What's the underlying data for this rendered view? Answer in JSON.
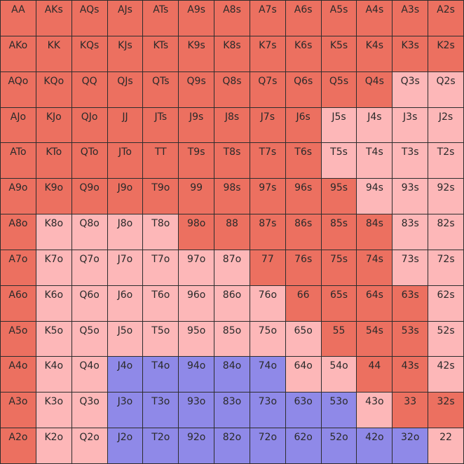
{
  "colors": {
    "raise": "#ec7060",
    "fold": "#fdb7b8",
    "call": "#8f89e8"
  },
  "ranks": [
    "A",
    "K",
    "Q",
    "J",
    "T",
    "9",
    "8",
    "7",
    "6",
    "5",
    "4",
    "3",
    "2"
  ],
  "grid": [
    [
      "R",
      "R",
      "R",
      "R",
      "R",
      "R",
      "R",
      "R",
      "R",
      "R",
      "R",
      "R",
      "R"
    ],
    [
      "R",
      "R",
      "R",
      "R",
      "R",
      "R",
      "R",
      "R",
      "R",
      "R",
      "R",
      "R",
      "R"
    ],
    [
      "R",
      "R",
      "R",
      "R",
      "R",
      "R",
      "R",
      "R",
      "R",
      "R",
      "R",
      "F",
      "F"
    ],
    [
      "R",
      "R",
      "R",
      "R",
      "R",
      "R",
      "R",
      "R",
      "R",
      "F",
      "F",
      "F",
      "F"
    ],
    [
      "R",
      "R",
      "R",
      "R",
      "R",
      "R",
      "R",
      "R",
      "R",
      "F",
      "F",
      "F",
      "F"
    ],
    [
      "R",
      "R",
      "R",
      "R",
      "R",
      "R",
      "R",
      "R",
      "R",
      "R",
      "F",
      "F",
      "F"
    ],
    [
      "R",
      "F",
      "F",
      "F",
      "F",
      "R",
      "R",
      "R",
      "R",
      "R",
      "R",
      "F",
      "F"
    ],
    [
      "R",
      "F",
      "F",
      "F",
      "F",
      "F",
      "F",
      "R",
      "R",
      "R",
      "R",
      "F",
      "F"
    ],
    [
      "R",
      "F",
      "F",
      "F",
      "F",
      "F",
      "F",
      "F",
      "R",
      "R",
      "R",
      "R",
      "F"
    ],
    [
      "R",
      "F",
      "F",
      "F",
      "F",
      "F",
      "F",
      "F",
      "F",
      "R",
      "R",
      "R",
      "F"
    ],
    [
      "R",
      "F",
      "F",
      "C",
      "C",
      "C",
      "C",
      "C",
      "F",
      "F",
      "R",
      "R",
      "F"
    ],
    [
      "R",
      "F",
      "F",
      "C",
      "C",
      "C",
      "C",
      "C",
      "C",
      "C",
      "F",
      "R",
      "R"
    ],
    [
      "R",
      "F",
      "F",
      "C",
      "C",
      "C",
      "C",
      "C",
      "C",
      "C",
      "C",
      "C",
      "F"
    ]
  ],
  "cells": [
    [
      "AA",
      "AKs",
      "AQs",
      "AJs",
      "ATs",
      "A9s",
      "A8s",
      "A7s",
      "A6s",
      "A5s",
      "A4s",
      "A3s",
      "A2s"
    ],
    [
      "AKo",
      "KK",
      "KQs",
      "KJs",
      "KTs",
      "K9s",
      "K8s",
      "K7s",
      "K6s",
      "K5s",
      "K4s",
      "K3s",
      "K2s"
    ],
    [
      "AQo",
      "KQo",
      "QQ",
      "QJs",
      "QTs",
      "Q9s",
      "Q8s",
      "Q7s",
      "Q6s",
      "Q5s",
      "Q4s",
      "Q3s",
      "Q2s"
    ],
    [
      "AJo",
      "KJo",
      "QJo",
      "JJ",
      "JTs",
      "J9s",
      "J8s",
      "J7s",
      "J6s",
      "J5s",
      "J4s",
      "J3s",
      "J2s"
    ],
    [
      "ATo",
      "KTo",
      "QTo",
      "JTo",
      "TT",
      "T9s",
      "T8s",
      "T7s",
      "T6s",
      "T5s",
      "T4s",
      "T3s",
      "T2s"
    ],
    [
      "A9o",
      "K9o",
      "Q9o",
      "J9o",
      "T9o",
      "99",
      "98s",
      "97s",
      "96s",
      "95s",
      "94s",
      "93s",
      "92s"
    ],
    [
      "A8o",
      "K8o",
      "Q8o",
      "J8o",
      "T8o",
      "98o",
      "88",
      "87s",
      "86s",
      "85s",
      "84s",
      "83s",
      "82s"
    ],
    [
      "A7o",
      "K7o",
      "Q7o",
      "J7o",
      "T7o",
      "97o",
      "87o",
      "77",
      "76s",
      "75s",
      "74s",
      "73s",
      "72s"
    ],
    [
      "A6o",
      "K6o",
      "Q6o",
      "J6o",
      "T6o",
      "96o",
      "86o",
      "76o",
      "66",
      "65s",
      "64s",
      "63s",
      "62s"
    ],
    [
      "A5o",
      "K5o",
      "Q5o",
      "J5o",
      "T5o",
      "95o",
      "85o",
      "75o",
      "65o",
      "55",
      "54s",
      "53s",
      "52s"
    ],
    [
      "A4o",
      "K4o",
      "Q4o",
      "J4o",
      "T4o",
      "94o",
      "84o",
      "74o",
      "64o",
      "54o",
      "44",
      "43s",
      "42s"
    ],
    [
      "A3o",
      "K3o",
      "Q3o",
      "J3o",
      "T3o",
      "93o",
      "83o",
      "73o",
      "63o",
      "53o",
      "43o",
      "33",
      "32s"
    ],
    [
      "A2o",
      "K2o",
      "Q2o",
      "J2o",
      "T2o",
      "92o",
      "82o",
      "72o",
      "62o",
      "52o",
      "42o",
      "32o",
      "22"
    ]
  ]
}
